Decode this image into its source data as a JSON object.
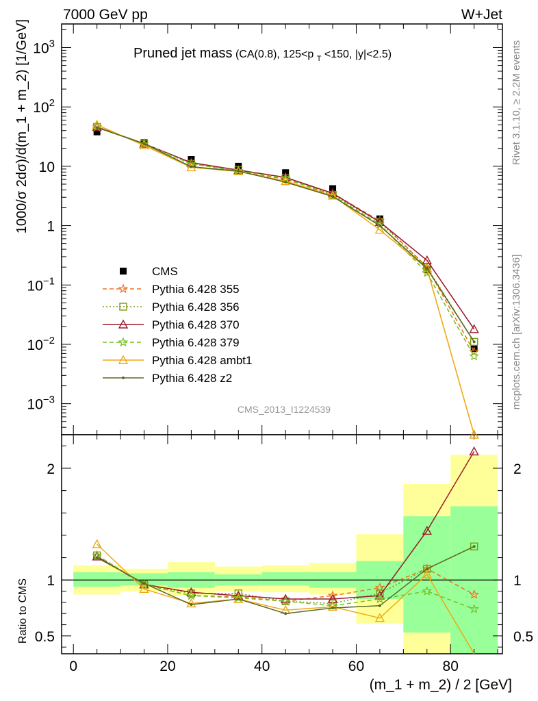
{
  "header": {
    "left": "7000 GeV pp",
    "right": "W+Jet"
  },
  "title": {
    "main": "Pruned jet mass",
    "detail": "(CA(0.8), 125<p",
    "detail_sub": "T",
    "detail_end": "<150, |y|<2.5)"
  },
  "side_labels": {
    "top": "Rivet 3.1.10, ≥ 2.2M events",
    "bottom": "mcplots.cern.ch [arXiv:1306.3436]"
  },
  "watermark": "CMS_2013_I1224539",
  "colors": {
    "CMS": "#000000",
    "Pythia 6.428 355": "#f07020",
    "Pythia 6.428 356": "#7a9a10",
    "Pythia 6.428 370": "#9a1a2a",
    "Pythia 6.428 379": "#70c020",
    "Pythia 6.428 ambt1": "#f0a810",
    "Pythia 6.428 z2": "#5a6a20",
    "band_inner": "#99ff99",
    "band_outer": "#ffff99"
  },
  "chart_data": [
    {
      "type": "scatter",
      "panel": "main",
      "title": "Pruned jet mass(CA(0.8), 125<pT<150, |y|<2.5)",
      "ylabel": "1000/σ 2dσ)/d(m_1 + m_2) [1/GeV]",
      "yscale": "log",
      "ylim": [
        0.0003,
        2500
      ],
      "xlim": [
        -2.5,
        91
      ],
      "x": [
        5,
        15,
        25,
        35,
        45,
        55,
        65,
        75,
        85
      ],
      "yticks": [
        "10^-3",
        "10^-2",
        "10^-1",
        "1",
        "10",
        "10^2",
        "10^3"
      ],
      "legend_position": "left-middle",
      "series": [
        {
          "name": "CMS",
          "marker": "square",
          "line": "none",
          "values": [
            38,
            25,
            13,
            10,
            7.8,
            4.2,
            1.3,
            0.18,
            0.0085
          ]
        },
        {
          "name": "Pythia 6.428 355",
          "marker": "star",
          "line": "dashed",
          "values": [
            46,
            24,
            11,
            8.4,
            6.0,
            3.5,
            1.2,
            0.2,
            0.0075
          ]
        },
        {
          "name": "Pythia 6.428 356",
          "marker": "open-square",
          "line": "dotted",
          "values": [
            46,
            24,
            11,
            8.7,
            6.3,
            3.3,
            1.15,
            0.2,
            0.011
          ]
        },
        {
          "name": "Pythia 6.428 370",
          "marker": "open-triangle",
          "line": "solid",
          "values": [
            46,
            24,
            11.5,
            8.6,
            6.5,
            3.5,
            1.15,
            0.26,
            0.018
          ]
        },
        {
          "name": "Pythia 6.428 379",
          "marker": "star",
          "line": "dashed",
          "values": [
            46,
            24,
            11,
            8.4,
            6.3,
            3.2,
            1.05,
            0.16,
            0.0063
          ]
        },
        {
          "name": "Pythia 6.428 ambt1",
          "marker": "open-triangle",
          "line": "solid",
          "values": [
            50,
            22.5,
            9.6,
            8.2,
            5.6,
            3.2,
            0.85,
            0.19,
            0.0002
          ]
        },
        {
          "name": "Pythia 6.428 z2",
          "marker": "dot",
          "line": "solid",
          "values": [
            45,
            24,
            9.8,
            8.3,
            5.4,
            3.1,
            1.0,
            0.19,
            0.011
          ]
        }
      ]
    },
    {
      "type": "line",
      "panel": "ratio",
      "xlabel": "(m_1 + m_2) / 2 [GeV]",
      "ylabel": "Ratio to CMS",
      "ylim": [
        0.34,
        2.3
      ],
      "xlim": [
        -2.5,
        91
      ],
      "xticks": [
        0,
        20,
        40,
        60,
        80
      ],
      "yticks": [
        0.5,
        1,
        2
      ],
      "bins": [
        [
          0,
          10
        ],
        [
          10,
          20
        ],
        [
          20,
          30
        ],
        [
          30,
          40
        ],
        [
          40,
          50
        ],
        [
          50,
          60
        ],
        [
          60,
          70
        ],
        [
          70,
          80
        ],
        [
          80,
          90
        ]
      ],
      "band_inner": [
        [
          0.94,
          1.07
        ],
        [
          0.95,
          1.06
        ],
        [
          0.93,
          1.07
        ],
        [
          0.95,
          1.05
        ],
        [
          0.95,
          1.07
        ],
        [
          0.93,
          1.07
        ],
        [
          0.83,
          1.17
        ],
        [
          0.53,
          1.57
        ],
        [
          0.34,
          1.66
        ]
      ],
      "band_outer": [
        [
          0.87,
          1.13
        ],
        [
          0.9,
          1.1
        ],
        [
          0.86,
          1.16
        ],
        [
          0.9,
          1.12
        ],
        [
          0.89,
          1.13
        ],
        [
          0.87,
          1.15
        ],
        [
          0.61,
          1.41
        ],
        [
          0.34,
          1.86
        ],
        [
          0.34,
          2.12
        ]
      ],
      "x": [
        5,
        15,
        25,
        35,
        45,
        55,
        65,
        75,
        85
      ],
      "series": [
        {
          "name": "Pythia 6.428 355",
          "values": [
            1.22,
            0.96,
            0.86,
            0.85,
            0.81,
            0.86,
            0.93,
            1.1,
            0.87
          ]
        },
        {
          "name": "Pythia 6.428 356",
          "values": [
            1.22,
            0.96,
            0.88,
            0.88,
            0.81,
            0.79,
            0.88,
            1.1,
            1.3
          ]
        },
        {
          "name": "Pythia 6.428 370",
          "values": [
            1.21,
            0.96,
            0.89,
            0.86,
            0.83,
            0.83,
            0.86,
            1.44,
            2.15
          ]
        },
        {
          "name": "Pythia 6.428 379",
          "values": [
            1.22,
            0.96,
            0.86,
            0.84,
            0.81,
            0.77,
            0.83,
            0.9,
            0.74
          ]
        },
        {
          "name": "Pythia 6.428 ambt1",
          "values": [
            1.32,
            0.92,
            0.79,
            0.83,
            0.73,
            0.76,
            0.66,
            1.05,
            0.02
          ]
        },
        {
          "name": "Pythia 6.428 z2",
          "values": [
            1.2,
            0.97,
            0.78,
            0.83,
            0.7,
            0.75,
            0.77,
            1.1,
            1.3
          ]
        }
      ]
    }
  ]
}
